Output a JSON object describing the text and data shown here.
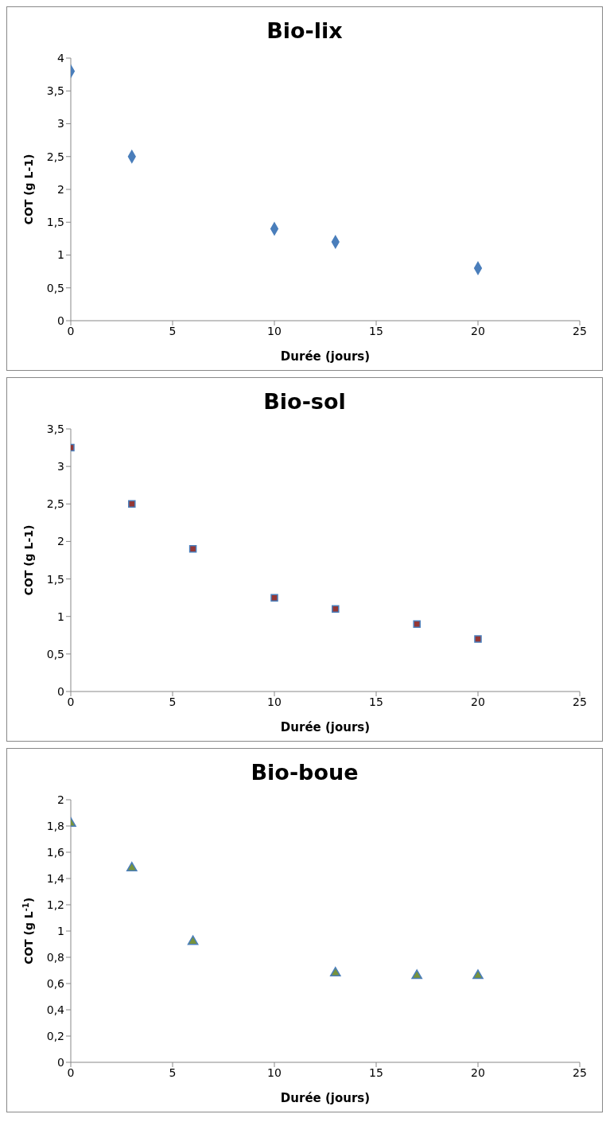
{
  "chart_data": [
    {
      "type": "scatter",
      "title": "Bio-lix",
      "xlabel": "Durée (jours)",
      "ylabel": "COT (g L-1)",
      "marker": "diamond",
      "grid": false,
      "legend": false,
      "x": [
        0,
        3,
        10,
        13,
        20
      ],
      "series": [
        {
          "color": "#4a7ebb",
          "values": [
            3.8,
            2.5,
            1.4,
            1.2,
            0.8
          ]
        }
      ],
      "xlim": [
        0,
        25
      ],
      "xticks": [
        0,
        5,
        10,
        15,
        20,
        25
      ],
      "ylim": [
        0,
        4
      ],
      "yticks": [
        0,
        {
          "value": 0.5,
          "label": "0,5"
        },
        1,
        {
          "value": 1.5,
          "label": "1,5"
        },
        2,
        {
          "value": 2.5,
          "label": "2,5"
        },
        3,
        {
          "value": 3.5,
          "label": "3,5"
        },
        4
      ]
    },
    {
      "type": "scatter",
      "title": "Bio-sol",
      "xlabel": "Durée (jours)",
      "ylabel": "COT (g L-1)",
      "marker": "square",
      "grid": false,
      "legend": false,
      "x": [
        0,
        3,
        6,
        10,
        13,
        17,
        20
      ],
      "series": [
        {
          "color": "#953735",
          "values": [
            3.25,
            2.5,
            1.9,
            1.25,
            1.1,
            0.9,
            0.7
          ]
        }
      ],
      "xlim": [
        0,
        25
      ],
      "xticks": [
        0,
        5,
        10,
        15,
        20,
        25
      ],
      "ylim": [
        0,
        3.5
      ],
      "yticks": [
        0,
        {
          "value": 0.5,
          "label": "0,5"
        },
        1,
        {
          "value": 1.5,
          "label": "1,5"
        },
        2,
        {
          "value": 2.5,
          "label": "2,5"
        },
        3,
        {
          "value": 3.5,
          "label": "3,5"
        }
      ]
    },
    {
      "type": "scatter",
      "title": "Bio-boue",
      "xlabel": "Durée (jours)",
      "ylabel": "COT (g L$^{-1}$)",
      "marker": "triangle",
      "grid": false,
      "legend": false,
      "x": [
        0,
        3,
        6,
        13,
        17,
        20
      ],
      "series": [
        {
          "color": "#77933c",
          "values": [
            1.82,
            1.48,
            0.92,
            0.68,
            0.66,
            0.66
          ]
        }
      ],
      "xlim": [
        0,
        25
      ],
      "xticks": [
        0,
        5,
        10,
        15,
        20,
        25
      ],
      "ylim": [
        0,
        2
      ],
      "yticks": [
        0,
        {
          "value": 0.2,
          "label": "0,2"
        },
        {
          "value": 0.4,
          "label": "0,4"
        },
        {
          "value": 0.6,
          "label": "0,6"
        },
        {
          "value": 0.8,
          "label": "0,8"
        },
        1,
        {
          "value": 1.2,
          "label": "1,2"
        },
        {
          "value": 1.4,
          "label": "1,4"
        },
        {
          "value": 1.6,
          "label": "1,6"
        },
        {
          "value": 1.8,
          "label": "1,8"
        },
        2
      ]
    }
  ]
}
